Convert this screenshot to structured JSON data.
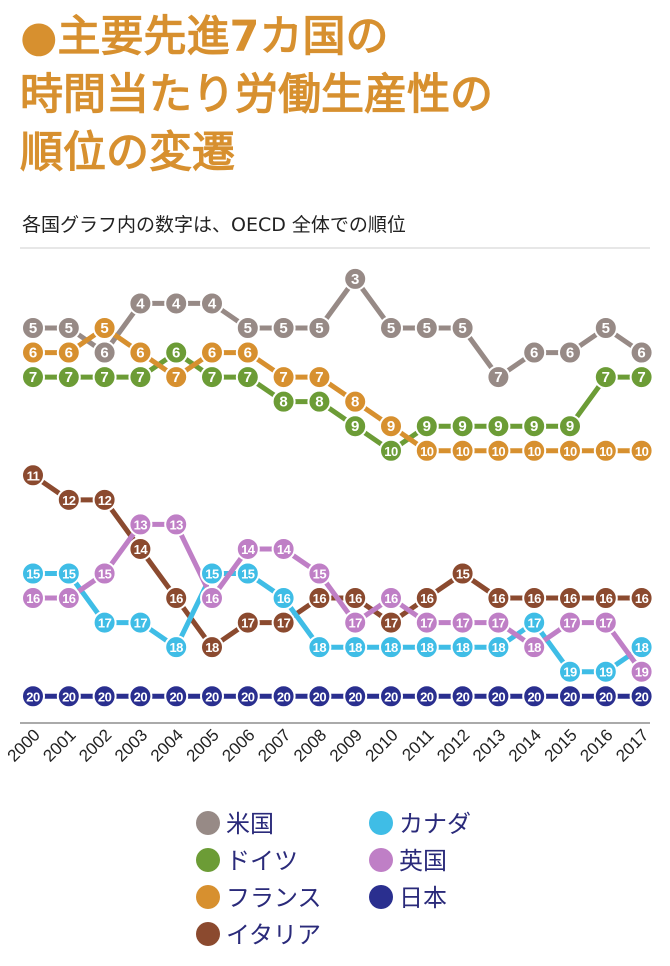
{
  "title_lines": [
    "●主要先進7カ国の",
    "時間当たり労働生産性の",
    "順位の変遷"
  ],
  "subtitle": "各国グラフ内の数字は、OECD 全体での順位",
  "chart_data": {
    "type": "line",
    "x": [
      "2000",
      "2001",
      "2002",
      "2003",
      "2004",
      "2005",
      "2006",
      "2007",
      "2008",
      "2009",
      "2010",
      "2011",
      "2012",
      "2013",
      "2014",
      "2015",
      "2016",
      "2017"
    ],
    "y_inverted": true,
    "ylim": [
      2,
      21
    ],
    "grid": false,
    "legend_position": "bottom",
    "series": [
      {
        "name": "米国",
        "color": "#978a86",
        "values": [
          5,
          5,
          6,
          4,
          4,
          4,
          5,
          5,
          5,
          3,
          5,
          5,
          5,
          7,
          6,
          6,
          5,
          6
        ]
      },
      {
        "name": "ドイツ",
        "color": "#6c9c36",
        "values": [
          7,
          7,
          7,
          7,
          6,
          7,
          7,
          8,
          8,
          9,
          10,
          9,
          9,
          9,
          9,
          9,
          7,
          7
        ]
      },
      {
        "name": "フランス",
        "color": "#d7902f",
        "values": [
          6,
          6,
          5,
          6,
          7,
          6,
          6,
          7,
          7,
          8,
          9,
          10,
          10,
          10,
          10,
          10,
          10,
          10
        ]
      },
      {
        "name": "イタリア",
        "color": "#8b4a2f",
        "values": [
          11,
          12,
          12,
          14,
          16,
          18,
          17,
          17,
          16,
          16,
          17,
          16,
          15,
          16,
          16,
          16,
          16,
          16
        ]
      },
      {
        "name": "カナダ",
        "color": "#3fbde6",
        "values": [
          15,
          15,
          17,
          17,
          18,
          15,
          15,
          16,
          18,
          18,
          18,
          18,
          18,
          18,
          17,
          19,
          19,
          18
        ]
      },
      {
        "name": "英国",
        "color": "#bf7fc6",
        "values": [
          16,
          16,
          15,
          13,
          13,
          16,
          14,
          14,
          15,
          17,
          16,
          17,
          17,
          17,
          18,
          17,
          17,
          19
        ]
      },
      {
        "name": "日本",
        "color": "#2a2f8f",
        "values": [
          20,
          20,
          20,
          20,
          20,
          20,
          20,
          20,
          20,
          20,
          20,
          20,
          20,
          20,
          20,
          20,
          20,
          20
        ]
      }
    ]
  },
  "legend": [
    {
      "label": "米国",
      "color": "#978a86"
    },
    {
      "label": "カナダ",
      "color": "#3fbde6"
    },
    {
      "label": "ドイツ",
      "color": "#6c9c36"
    },
    {
      "label": "英国",
      "color": "#bf7fc6"
    },
    {
      "label": "フランス",
      "color": "#d7902f"
    },
    {
      "label": "日本",
      "color": "#2a2f8f"
    },
    {
      "label": "イタリア",
      "color": "#8b4a2f"
    }
  ]
}
